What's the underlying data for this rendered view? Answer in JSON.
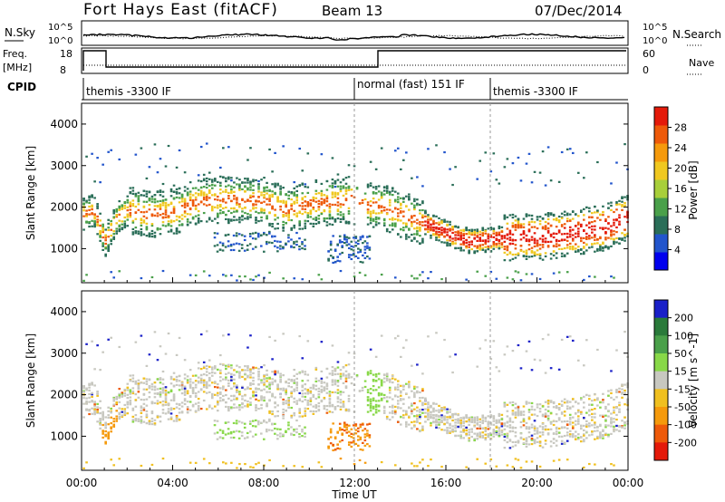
{
  "header": {
    "station": "Fort Hays East (fitACF)",
    "beam": "Beam 13",
    "date": "07/Dec/2014"
  },
  "noise_panel": {
    "left_label": "N.Sky",
    "right_label": "N.Search",
    "left_ticks": [
      "10^5",
      "10^0"
    ],
    "right_ticks": [
      "10^5",
      "10^0"
    ]
  },
  "freq_panel": {
    "left_label_1": "Freq.",
    "left_label_2": "[MHz]",
    "right_label": "Nave",
    "left_ticks": [
      "18",
      "8"
    ],
    "right_ticks": [
      "60",
      "0"
    ]
  },
  "cpid": {
    "label": "CPID",
    "segments": [
      {
        "label": "themis -3300 IF",
        "start_hour": 0
      },
      {
        "label": "normal (fast) 151 IF",
        "start_hour": 12
      },
      {
        "label": "themis -3300 IF",
        "start_hour": 18
      }
    ]
  },
  "chart_data": [
    {
      "type": "heatmap",
      "name": "power",
      "ylabel": "Slant Range [km]",
      "xlabel": "Time UT",
      "x_ticks": [
        "00:00",
        "04:00",
        "08:00",
        "12:00",
        "16:00",
        "20:00",
        "00:00"
      ],
      "x_range_hours": [
        0,
        24
      ],
      "y_ticks": [
        1000,
        2000,
        3000,
        4000
      ],
      "ylim": [
        180,
        4500
      ],
      "colorbar": {
        "label": "Power [dB]",
        "ticks": [
          "4",
          "8",
          "12",
          "16",
          "20",
          "24",
          "28"
        ],
        "range": [
          0,
          30
        ],
        "colors": [
          "#0000ee",
          "#2255cc",
          "#2a6e58",
          "#4aa04a",
          "#a8cf3a",
          "#f0c820",
          "#f59a0c",
          "#ee5a0a",
          "#e41a0a"
        ]
      },
      "band_profile": {
        "hours": [
          0,
          0.5,
          1,
          1.5,
          2,
          3,
          4,
          5,
          6,
          7,
          8,
          9,
          10,
          11,
          11.8,
          12.5,
          13,
          14,
          15,
          16,
          17,
          18,
          19,
          20,
          21,
          22,
          23,
          23.8
        ],
        "range_km": [
          1850,
          1950,
          1200,
          1750,
          1950,
          1850,
          1900,
          2150,
          2200,
          2200,
          2150,
          1950,
          2100,
          2150,
          2200,
          2050,
          2050,
          1850,
          1650,
          1400,
          1200,
          1250,
          1300,
          1300,
          1350,
          1450,
          1550,
          1750
        ]
      }
    },
    {
      "type": "heatmap",
      "name": "velocity",
      "ylabel": "Slant Range [km]",
      "xlabel": "Time UT",
      "x_ticks": [
        "00:00",
        "04:00",
        "08:00",
        "12:00",
        "16:00",
        "20:00",
        "00:00"
      ],
      "x_range_hours": [
        0,
        24
      ],
      "y_ticks": [
        1000,
        2000,
        3000,
        4000
      ],
      "ylim": [
        180,
        4500
      ],
      "colorbar": {
        "label": "Velocity [m s^-1]",
        "ticks": [
          "200",
          "100",
          "50",
          "15",
          "-15",
          "-50",
          "-100",
          "-200"
        ],
        "range": [
          -250,
          250
        ],
        "colors": [
          "#1a20c8",
          "#2a7a3a",
          "#4aa04a",
          "#88d848",
          "#c8c8c0",
          "#f0c020",
          "#f59a0c",
          "#ee5a0a",
          "#e41a0a"
        ]
      }
    }
  ]
}
